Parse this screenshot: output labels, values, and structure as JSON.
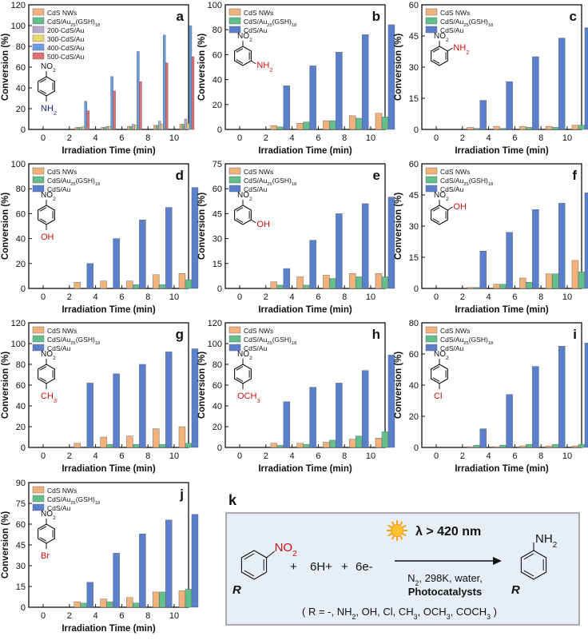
{
  "colors": {
    "cds": "#f1b27c",
    "au": "#63c08c",
    "cdsau": "#5a80cc",
    "cdsau_200": "#b8aac8",
    "cdsau_300": "#e8d870",
    "cdsau_400": "#6a9ce0",
    "cdsau_500": "#e07070",
    "label_red": "#cc1111",
    "label_navy": "#1a237e",
    "panel_bg": "#e8eef8",
    "panel_border": "#7a7a7a"
  },
  "axis_labels": {
    "x": "Irradiation Time (min)",
    "y": "Conversion (%)"
  },
  "x_ticks": [
    "0",
    "2",
    "4",
    "6",
    "8",
    "10"
  ],
  "molecule_labels": {
    "nitro": "NO2",
    "amine": "NH2",
    "hydroxy": "OH",
    "methyl": "CH3",
    "methoxy": "OCH3",
    "chloro": "Cl",
    "bromo": "Br"
  },
  "chart_data": [
    {
      "panel": "a",
      "type": "bar",
      "substituent": "amine",
      "sub_pos": "para",
      "ylim": [
        0,
        120
      ],
      "yticks": [
        0,
        20,
        40,
        60,
        80,
        100,
        120
      ],
      "categories": [
        0,
        2,
        4,
        6,
        8,
        10
      ],
      "series": [
        {
          "name": "CdS NWs",
          "key": "cds",
          "values": [
            0,
            2,
            2,
            3,
            4,
            5
          ]
        },
        {
          "name": "CdS/Au25(GSH)18",
          "key": "au",
          "values": [
            0,
            2,
            2,
            3,
            4,
            5
          ]
        },
        {
          "name": "200-CdS/Au",
          "key": "cdsau_200",
          "values": [
            0,
            2,
            3,
            5,
            8,
            10
          ]
        },
        {
          "name": "300-CdS/Au",
          "key": "cdsau_300",
          "values": [
            0,
            3,
            3,
            4,
            5,
            6
          ]
        },
        {
          "name": "400-CdS/Au",
          "key": "cdsau_400",
          "values": [
            0,
            27,
            51,
            75,
            91,
            100
          ]
        },
        {
          "name": "500-CdS/Au",
          "key": "cdsau_500",
          "values": [
            0,
            18,
            37,
            46,
            64,
            70
          ]
        }
      ]
    },
    {
      "panel": "b",
      "type": "bar",
      "substituent": "amine",
      "sub_pos": "meta",
      "ylim": [
        0,
        100
      ],
      "yticks": [
        0,
        20,
        40,
        60,
        80,
        100
      ],
      "categories": [
        0,
        2,
        4,
        6,
        8,
        10
      ],
      "series": [
        {
          "name": "CdS NWs",
          "key": "cds",
          "values": [
            0,
            3,
            5,
            7,
            11,
            13
          ]
        },
        {
          "name": "CdS/Au25(GSH)18",
          "key": "au",
          "values": [
            0,
            2,
            6,
            7,
            9,
            10
          ]
        },
        {
          "name": "CdS/Au",
          "key": "cdsau",
          "values": [
            0,
            35,
            51,
            62,
            76,
            84
          ]
        }
      ]
    },
    {
      "panel": "c",
      "type": "bar",
      "substituent": "amine",
      "sub_pos": "ortho",
      "ylim": [
        0,
        60
      ],
      "yticks": [
        0,
        15,
        30,
        45,
        60
      ],
      "categories": [
        0,
        2,
        4,
        6,
        8,
        10
      ],
      "series": [
        {
          "name": "CdS NWs",
          "key": "cds",
          "values": [
            0,
            1,
            1.5,
            1.5,
            1.5,
            2
          ]
        },
        {
          "name": "CdS/Au25(GSH)18",
          "key": "au",
          "values": [
            0,
            0.5,
            0.5,
            1,
            1,
            2
          ]
        },
        {
          "name": "CdS/Au",
          "key": "cdsau",
          "values": [
            0,
            14,
            23,
            35,
            44,
            49
          ]
        }
      ]
    },
    {
      "panel": "d",
      "type": "bar",
      "substituent": "hydroxy",
      "sub_pos": "para",
      "ylim": [
        0,
        100
      ],
      "yticks": [
        0,
        20,
        40,
        60,
        80,
        100
      ],
      "categories": [
        0,
        2,
        4,
        6,
        8,
        10
      ],
      "series": [
        {
          "name": "CdS NWs",
          "key": "cds",
          "values": [
            0,
            5,
            6,
            6,
            11,
            12
          ]
        },
        {
          "name": "CdS/Au25(GSH)18",
          "key": "au",
          "values": [
            0,
            0,
            0,
            3,
            3,
            7
          ]
        },
        {
          "name": "CdS/Au",
          "key": "cdsau",
          "values": [
            0,
            20,
            40,
            55,
            65,
            81
          ]
        }
      ]
    },
    {
      "panel": "e",
      "type": "bar",
      "substituent": "hydroxy",
      "sub_pos": "meta",
      "ylim": [
        0,
        75
      ],
      "yticks": [
        0,
        15,
        30,
        45,
        60,
        75
      ],
      "categories": [
        0,
        2,
        4,
        6,
        8,
        10
      ],
      "series": [
        {
          "name": "CdS NWs",
          "key": "cds",
          "values": [
            0,
            4,
            7,
            8,
            9,
            9
          ]
        },
        {
          "name": "CdS/Au25(GSH)18",
          "key": "au",
          "values": [
            0,
            2,
            2,
            6,
            7,
            7
          ]
        },
        {
          "name": "CdS/Au",
          "key": "cdsau",
          "values": [
            0,
            12,
            29,
            45,
            51,
            55
          ]
        }
      ]
    },
    {
      "panel": "f",
      "type": "bar",
      "substituent": "hydroxy",
      "sub_pos": "ortho",
      "ylim": [
        0,
        60
      ],
      "yticks": [
        0,
        15,
        30,
        45,
        60
      ],
      "categories": [
        0,
        2,
        4,
        6,
        8,
        10
      ],
      "series": [
        {
          "name": "CdS NWs",
          "key": "cds",
          "values": [
            0,
            0.5,
            2,
            5,
            7,
            13.5
          ]
        },
        {
          "name": "CdS/Au25(GSH)18",
          "key": "au",
          "values": [
            0,
            0.5,
            2,
            3,
            7,
            8
          ]
        },
        {
          "name": "CdS/Au",
          "key": "cdsau",
          "values": [
            0,
            18,
            27,
            38,
            41,
            46
          ]
        }
      ]
    },
    {
      "panel": "g",
      "type": "bar",
      "substituent": "methyl",
      "sub_pos": "para",
      "ylim": [
        0,
        120
      ],
      "yticks": [
        0,
        20,
        40,
        60,
        80,
        100,
        120
      ],
      "categories": [
        0,
        2,
        4,
        6,
        8,
        10
      ],
      "series": [
        {
          "name": "CdS NWs",
          "key": "cds",
          "values": [
            0,
            4,
            10,
            11,
            18,
            20
          ]
        },
        {
          "name": "CdS/Au25(GSH)18",
          "key": "au",
          "values": [
            0,
            0,
            3,
            3,
            3,
            4
          ]
        },
        {
          "name": "CdS/Au",
          "key": "cdsau",
          "values": [
            0,
            62,
            71,
            80,
            92,
            95
          ]
        }
      ]
    },
    {
      "panel": "h",
      "type": "bar",
      "substituent": "methoxy",
      "sub_pos": "para",
      "ylim": [
        0,
        120
      ],
      "yticks": [
        0,
        20,
        40,
        60,
        80,
        100,
        120
      ],
      "categories": [
        0,
        2,
        4,
        6,
        8,
        10
      ],
      "series": [
        {
          "name": "CdS NWs",
          "key": "cds",
          "values": [
            0,
            4,
            4,
            5,
            8,
            9
          ]
        },
        {
          "name": "CdS/Au25(GSH)18",
          "key": "au",
          "values": [
            0,
            2,
            3,
            7,
            11,
            15
          ]
        },
        {
          "name": "CdS/Au",
          "key": "cdsau",
          "values": [
            0,
            44,
            58,
            62,
            74,
            89
          ]
        }
      ]
    },
    {
      "panel": "i",
      "type": "bar",
      "substituent": "chloro",
      "sub_pos": "para",
      "ylim": [
        0,
        80
      ],
      "yticks": [
        0,
        20,
        40,
        60,
        80
      ],
      "categories": [
        0,
        2,
        4,
        6,
        8,
        10
      ],
      "series": [
        {
          "name": "CdS NWs",
          "key": "cds",
          "values": [
            0,
            0.5,
            0.5,
            1,
            1,
            1
          ]
        },
        {
          "name": "CdS/Au25(GSH)18",
          "key": "au",
          "values": [
            0,
            1.5,
            1.5,
            2,
            2,
            2
          ]
        },
        {
          "name": "CdS/Au",
          "key": "cdsau",
          "values": [
            0,
            12,
            34,
            52,
            65,
            67
          ]
        }
      ]
    },
    {
      "panel": "j",
      "type": "bar",
      "substituent": "bromo",
      "sub_pos": "para",
      "ylim": [
        0,
        90
      ],
      "yticks": [
        0,
        15,
        30,
        45,
        60,
        75,
        90
      ],
      "categories": [
        0,
        2,
        4,
        6,
        8,
        10
      ],
      "series": [
        {
          "name": "CdS NWs",
          "key": "cds",
          "values": [
            0,
            4,
            6,
            7,
            11,
            12
          ]
        },
        {
          "name": "CdS/Au25(GSH)18",
          "key": "au",
          "values": [
            0,
            3,
            4,
            3,
            11,
            13
          ]
        },
        {
          "name": "CdS/Au",
          "key": "cdsau",
          "values": [
            0,
            18,
            39,
            53,
            63,
            67
          ]
        }
      ]
    }
  ],
  "reaction": {
    "panel": "k",
    "reactant_group": "NO2",
    "r_label": "R",
    "plus": "+",
    "reagent_1": "6H+",
    "reagent_2": "6e-",
    "condition_top": "λ > 420 nm",
    "condition_1": "N2, 298K, water,",
    "condition_2": "Photocatalysts",
    "product_group": "NH2",
    "note": "( R = -, NH2, OH, Cl, CH3, OCH3, COCH3 )"
  }
}
